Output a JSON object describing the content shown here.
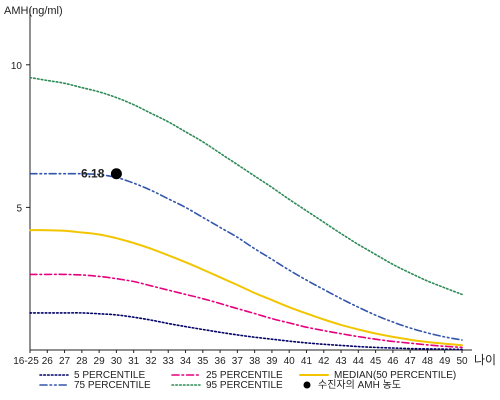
{
  "chart_data": {
    "type": "line",
    "ylabel": "AMH(ng/ml)",
    "xunit": "나이",
    "x": [
      "16-25",
      "26",
      "27",
      "28",
      "29",
      "30",
      "31",
      "32",
      "33",
      "34",
      "35",
      "36",
      "37",
      "38",
      "39",
      "40",
      "41",
      "42",
      "43",
      "44",
      "45",
      "46",
      "47",
      "48",
      "49",
      "50"
    ],
    "yticks": [
      5,
      10
    ],
    "ylim": [
      0,
      11.5
    ],
    "grid": false,
    "legend_position": "bottom",
    "series": [
      {
        "name": "5 PERCENTILE",
        "color": "#000066",
        "style": "dotted",
        "values": [
          1.3,
          1.3,
          1.3,
          1.3,
          1.27,
          1.23,
          1.15,
          1.05,
          0.93,
          0.82,
          0.72,
          0.62,
          0.53,
          0.45,
          0.38,
          0.31,
          0.25,
          0.2,
          0.16,
          0.12,
          0.09,
          0.07,
          0.05,
          0.04,
          0.03,
          0.02
        ]
      },
      {
        "name": "25 PERCENTILE",
        "color": "#e6007e",
        "style": "dashdot",
        "values": [
          2.65,
          2.65,
          2.65,
          2.63,
          2.58,
          2.5,
          2.4,
          2.25,
          2.1,
          1.95,
          1.8,
          1.63,
          1.45,
          1.28,
          1.1,
          0.95,
          0.8,
          0.68,
          0.57,
          0.47,
          0.38,
          0.3,
          0.24,
          0.18,
          0.13,
          0.09
        ]
      },
      {
        "name": "MEDIAN(50 PERCENTILE)",
        "color": "#f2c500",
        "style": "solid",
        "values": [
          4.2,
          4.2,
          4.18,
          4.12,
          4.05,
          3.92,
          3.75,
          3.55,
          3.32,
          3.08,
          2.82,
          2.55,
          2.28,
          2.0,
          1.75,
          1.5,
          1.28,
          1.07,
          0.88,
          0.72,
          0.58,
          0.46,
          0.36,
          0.28,
          0.22,
          0.17
        ]
      },
      {
        "name": "75 PERCENTILE",
        "color": "#3355aa",
        "style": "dashdotdot",
        "values": [
          6.18,
          6.18,
          6.18,
          6.18,
          6.15,
          6.05,
          5.85,
          5.6,
          5.3,
          5.0,
          4.65,
          4.3,
          3.95,
          3.55,
          3.18,
          2.8,
          2.45,
          2.12,
          1.8,
          1.5,
          1.22,
          0.98,
          0.77,
          0.6,
          0.46,
          0.35
        ]
      },
      {
        "name": "95 PERCENTILE",
        "color": "#2e8b57",
        "style": "dotted",
        "values": [
          9.55,
          9.45,
          9.35,
          9.2,
          9.05,
          8.85,
          8.6,
          8.3,
          8.0,
          7.65,
          7.3,
          6.9,
          6.5,
          6.1,
          5.7,
          5.28,
          4.88,
          4.48,
          4.08,
          3.7,
          3.35,
          3.0,
          2.7,
          2.42,
          2.18,
          1.95
        ]
      }
    ],
    "marker": {
      "name": "수진자의 AMH 농도",
      "x": "30",
      "y": 6.18,
      "label": "6.18",
      "color": "#000000"
    }
  }
}
